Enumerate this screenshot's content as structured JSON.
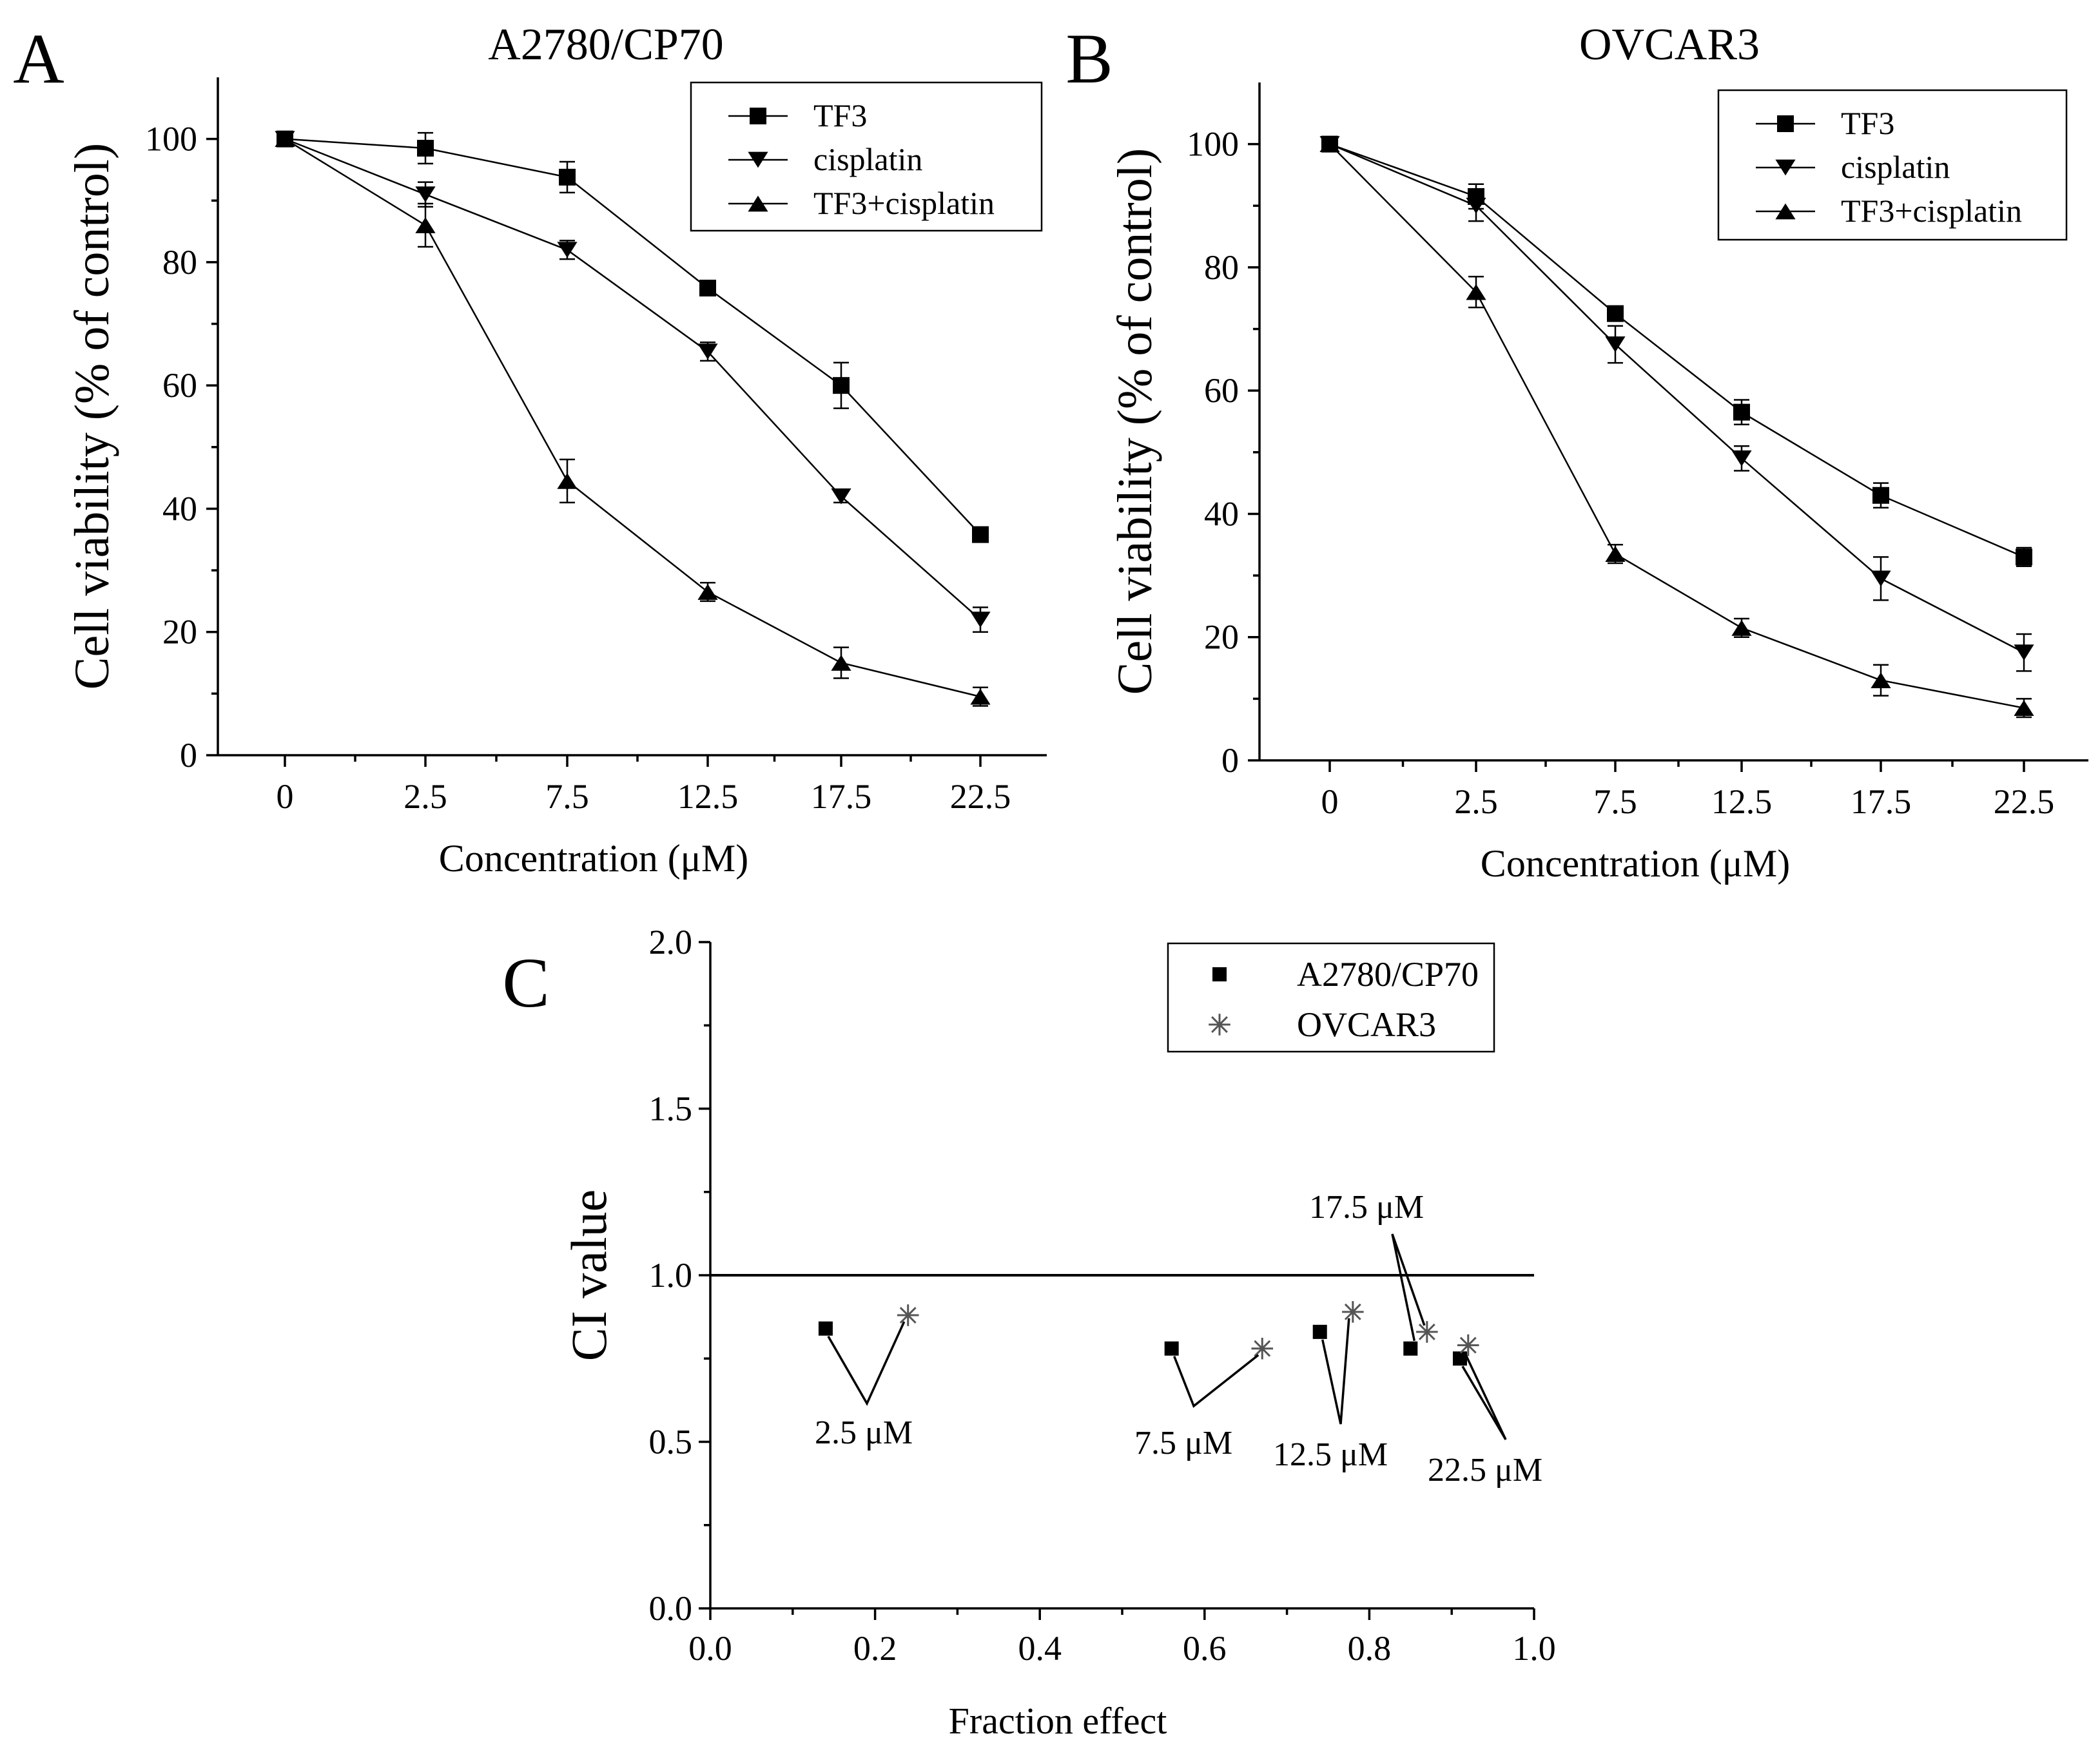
{
  "chart_data": [
    {
      "type": "line",
      "panel_label": "A",
      "title": "A2780/CP70",
      "xlabel": "Concentration (μM)",
      "ylabel": "Cell viability (% of control)",
      "categories": [
        "0",
        "2.5",
        "7.5",
        "12.5",
        "17.5",
        "22.5"
      ],
      "ylim": [
        0,
        110
      ],
      "yticks": [
        "0",
        "20",
        "40",
        "60",
        "80",
        "100"
      ],
      "legend_position": "top-right",
      "series": [
        {
          "name": "TF3",
          "marker": "square",
          "values": [
            100,
            98.5,
            93.8,
            75.8,
            60,
            35.8
          ],
          "errors": [
            0.5,
            2.5,
            2.5,
            1,
            3.7,
            1
          ]
        },
        {
          "name": "cisplatin",
          "marker": "triangle-down",
          "values": [
            100,
            91,
            82,
            65.5,
            42,
            22
          ],
          "errors": [
            0.5,
            2,
            1.5,
            1.5,
            1,
            2
          ]
        },
        {
          "name": "TF3+cisplatin",
          "marker": "triangle-up",
          "values": [
            100,
            86,
            44.5,
            26.5,
            15,
            9.5
          ],
          "errors": [
            0.5,
            3.5,
            3.5,
            1.5,
            2.5,
            1.5
          ]
        }
      ]
    },
    {
      "type": "line",
      "panel_label": "B",
      "title": "OVCAR3",
      "xlabel": "Concentration (μM)",
      "ylabel": "Cell viability (% of control)",
      "categories": [
        "0",
        "2.5",
        "7.5",
        "12.5",
        "17.5",
        "22.5"
      ],
      "ylim": [
        0,
        110
      ],
      "yticks": [
        "0",
        "20",
        "40",
        "60",
        "80",
        "100"
      ],
      "legend_position": "top-right",
      "series": [
        {
          "name": "TF3",
          "marker": "square",
          "values": [
            100,
            91.5,
            72.5,
            56.5,
            43,
            33
          ],
          "errors": [
            0.5,
            2,
            1,
            2,
            2,
            1.5
          ]
        },
        {
          "name": "cisplatin",
          "marker": "triangle-down",
          "values": [
            100,
            90,
            67.5,
            49,
            29.5,
            17.5
          ],
          "errors": [
            0.5,
            2.5,
            3,
            2,
            3.5,
            3
          ]
        },
        {
          "name": "TF3+cisplatin",
          "marker": "triangle-up",
          "values": [
            100,
            76,
            33.5,
            21.5,
            13,
            8.5
          ],
          "errors": [
            0.5,
            2.5,
            1.5,
            1.5,
            2.5,
            1.5
          ]
        }
      ]
    },
    {
      "type": "scatter",
      "panel_label": "C",
      "title": "",
      "xlabel": "Fraction effect",
      "ylabel": "CI value",
      "xlim": [
        0,
        1
      ],
      "ylim": [
        0,
        2
      ],
      "xticks": [
        "0.0",
        "0.2",
        "0.4",
        "0.6",
        "0.8",
        "1.0"
      ],
      "yticks": [
        "0.0",
        "0.5",
        "1.0",
        "1.5",
        "2.0"
      ],
      "reference_line": 1.0,
      "legend_position": "top-right",
      "series": [
        {
          "name": "A2780/CP70",
          "marker": "square",
          "x": [
            0.14,
            0.56,
            0.74,
            0.85,
            0.91
          ],
          "y": [
            0.84,
            0.78,
            0.83,
            0.78,
            0.75
          ]
        },
        {
          "name": "OVCAR3",
          "marker": "asterisk",
          "x": [
            0.24,
            0.67,
            0.78,
            0.87,
            0.92
          ],
          "y": [
            0.88,
            0.78,
            0.89,
            0.83,
            0.79
          ]
        }
      ],
      "annotations": [
        "2.5 μM",
        "7.5 μM",
        "12.5 μM",
        "17.5 μM",
        "22.5 μM"
      ]
    }
  ]
}
